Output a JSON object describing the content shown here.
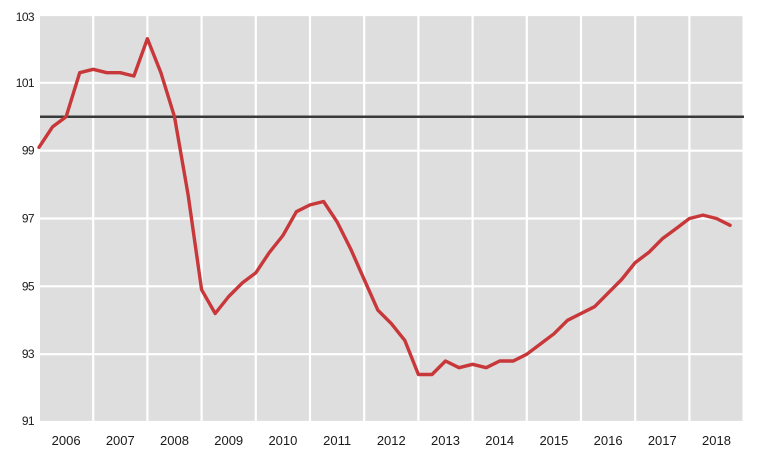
{
  "chart_data": {
    "type": "line",
    "title": "",
    "xlabel": "",
    "ylabel": "",
    "ylim": [
      91,
      103
    ],
    "y_ticks": [
      "91",
      "93",
      "95",
      "97",
      "99",
      "101",
      "103"
    ],
    "x_ticks": [
      "2006",
      "2007",
      "2008",
      "2009",
      "2010",
      "2011",
      "2012",
      "2013",
      "2014",
      "2015",
      "2016",
      "2017",
      "2018"
    ],
    "grid": true,
    "reference_line": {
      "value": 100,
      "color": "#3a3a3a"
    },
    "series": [
      {
        "color": "#c8373a",
        "x": [
          2006.0,
          2006.25,
          2006.5,
          2006.75,
          2007.0,
          2007.25,
          2007.5,
          2007.75,
          2008.0,
          2008.25,
          2008.5,
          2008.75,
          2009.0,
          2009.25,
          2009.5,
          2009.75,
          2010.0,
          2010.25,
          2010.5,
          2010.75,
          2011.0,
          2011.25,
          2011.5,
          2011.75,
          2012.0,
          2012.25,
          2012.5,
          2012.75,
          2013.0,
          2013.25,
          2013.5,
          2013.75,
          2014.0,
          2014.25,
          2014.5,
          2014.75,
          2015.0,
          2015.25,
          2015.5,
          2015.75,
          2016.0,
          2016.25,
          2016.5,
          2016.75,
          2017.0,
          2017.25,
          2017.5,
          2017.75,
          2018.0,
          2018.25,
          2018.5,
          2018.75
        ],
        "values": [
          99.1,
          99.7,
          100.0,
          101.3,
          101.4,
          101.3,
          101.3,
          101.2,
          102.3,
          101.3,
          100.0,
          97.7,
          94.9,
          94.2,
          94.7,
          95.1,
          95.4,
          96.0,
          96.5,
          97.2,
          97.4,
          97.5,
          96.9,
          96.1,
          95.2,
          94.3,
          93.9,
          93.4,
          92.4,
          92.4,
          92.8,
          92.6,
          92.7,
          92.6,
          92.8,
          92.8,
          93.0,
          93.3,
          93.6,
          94.0,
          94.2,
          94.4,
          94.8,
          95.2,
          95.7,
          96.0,
          96.4,
          96.7,
          97.0,
          97.1,
          97.0,
          96.8
        ]
      }
    ]
  },
  "colors": {
    "plot_background": "#dedede",
    "gridline": "#ffffff",
    "axis_text": "#1a1a1a"
  }
}
